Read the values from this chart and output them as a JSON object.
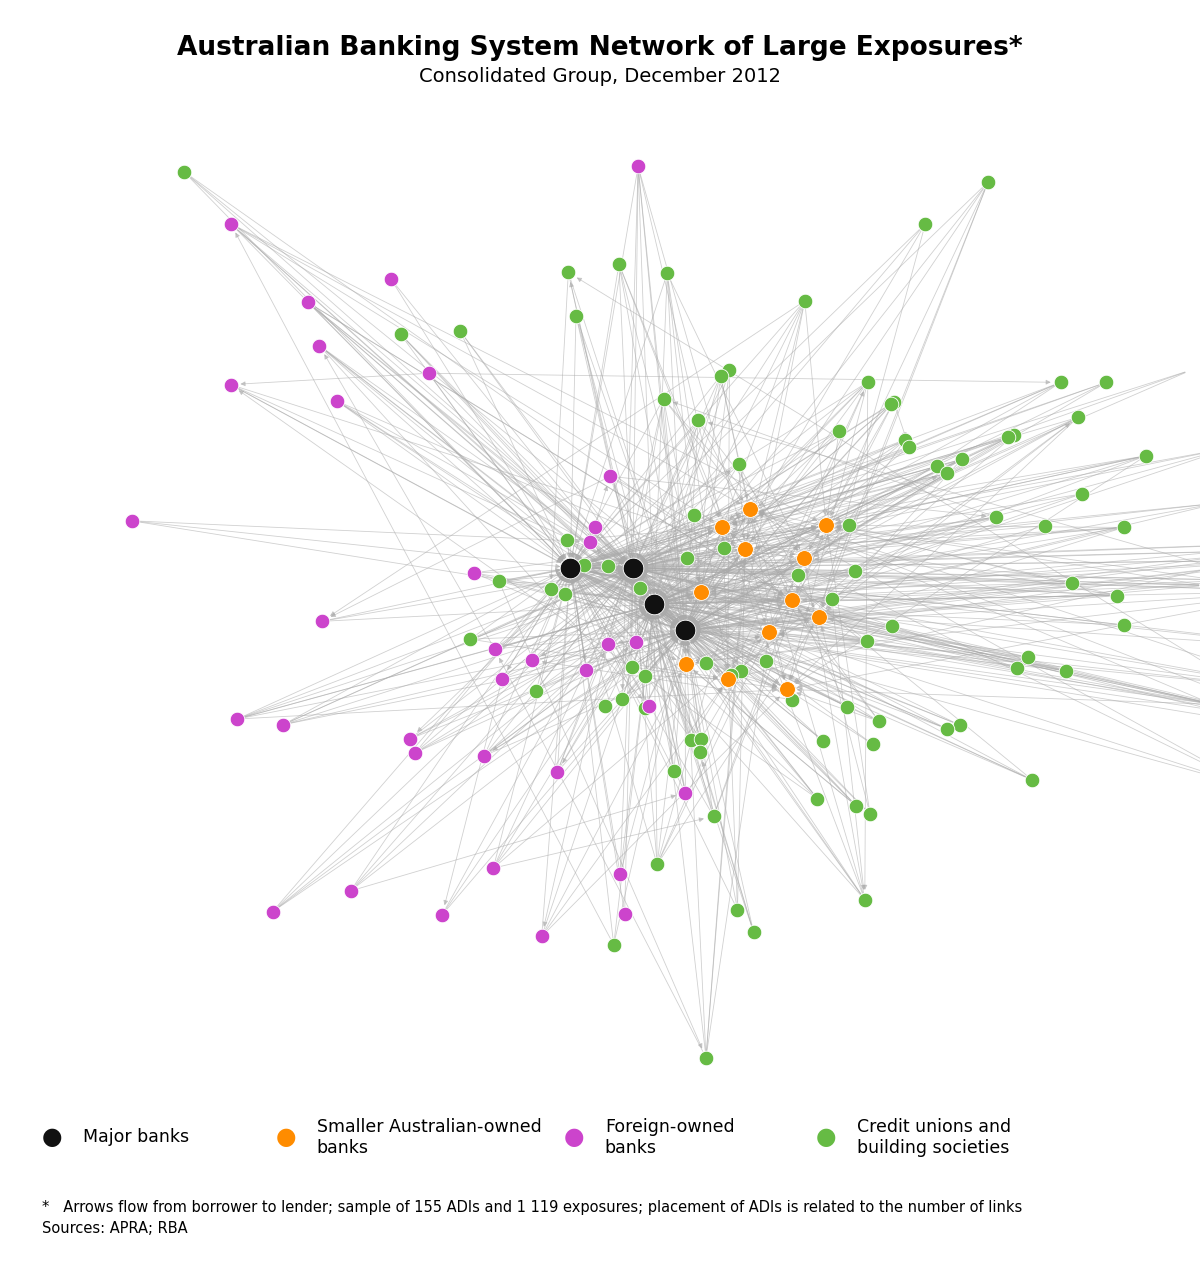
{
  "title": "Australian Banking System Network of Large Exposures*",
  "subtitle": "Consolidated Group, December 2012",
  "footnote_line1": "*   Arrows flow from borrower to lender; sample of 155 ADIs and 1 119 exposures; placement of ADIs is related to the number of links",
  "footnote_line2": "Sources: APRA; RBA",
  "node_types": {
    "major_banks": {
      "color": "#111111",
      "label": "Major banks",
      "count": 4,
      "size": 220
    },
    "smaller_australian": {
      "color": "#FF8C00",
      "label": "Smaller Australian-owned\nbanks",
      "count": 12,
      "size": 130
    },
    "foreign_owned": {
      "color": "#CC44CC",
      "label": "Foreign-owned\nbanks",
      "count": 35,
      "size": 110
    },
    "credit_unions": {
      "color": "#66BB44",
      "label": "Credit unions and\nbuilding societies",
      "count": 104,
      "size": 110
    }
  },
  "background_color": "#ffffff",
  "arrow_color": "#aaaaaa",
  "arrow_alpha": 0.55,
  "arrow_lw": 0.6,
  "title_fontsize": 19,
  "subtitle_fontsize": 14,
  "footnote_fontsize": 10.5,
  "legend_fontsize": 12.5,
  "figsize": [
    12.0,
    12.61
  ],
  "dpi": 100
}
